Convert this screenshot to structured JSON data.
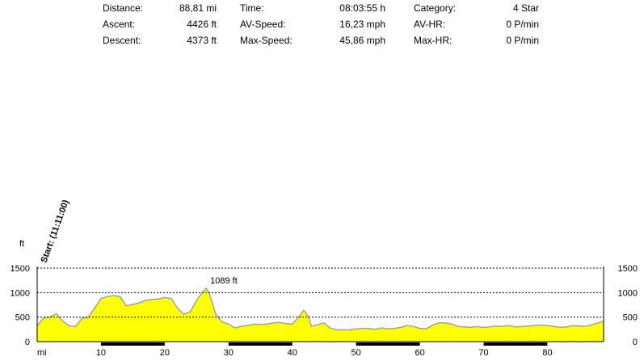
{
  "stats": [
    {
      "label": "Distance:",
      "value": "88,81 mi"
    },
    {
      "label": "Ascent:",
      "value": "4426 ft"
    },
    {
      "label": "Descent:",
      "value": "4373 ft"
    },
    {
      "label": "Time:",
      "value": "08:03:55 h"
    },
    {
      "label": "AV-Speed:",
      "value": "16,23 mph"
    },
    {
      "label": "Max-Speed:",
      "value": "45,86 mph"
    },
    {
      "label": "Category:",
      "value": "4 Star"
    },
    {
      "label": "AV-HR:",
      "value": "0 P/min"
    },
    {
      "label": "Max-HR:",
      "value": "0 P/min"
    }
  ],
  "chart_data": {
    "type": "area",
    "start_label": "Start: (11:11:00)",
    "ylabel": "ft",
    "xlabel": "mi",
    "ylim": [
      0,
      1500
    ],
    "xlim": [
      0,
      88.81
    ],
    "y_ticks": [
      "0",
      "500",
      "1000",
      "1500"
    ],
    "x_ticks": [
      "10",
      "20",
      "30",
      "40",
      "50",
      "60",
      "70",
      "80"
    ],
    "grid": "dashed horizontal",
    "fill_color": "#ffff00",
    "line_color": "#a0a0a0",
    "max_label": "1089 ft",
    "max_label_color": "#b22222",
    "max_point": {
      "x": 26.5,
      "y": 1089
    },
    "x": [
      0,
      1,
      2,
      3,
      4,
      5,
      6,
      7,
      8,
      9,
      10,
      11,
      12,
      13,
      14,
      15,
      16,
      17,
      18,
      19,
      20,
      21,
      22,
      23,
      24,
      25,
      26,
      26.5,
      27,
      28,
      29,
      30,
      31,
      32,
      33,
      34,
      35,
      36,
      37,
      38,
      39,
      40,
      41,
      41.8,
      42.5,
      43,
      44,
      45,
      46,
      47,
      48,
      49,
      50,
      51,
      52,
      53,
      54,
      55,
      56,
      57,
      58,
      59,
      60,
      61,
      62,
      63,
      64,
      65,
      66,
      67,
      68,
      69,
      70,
      71,
      72,
      73,
      74,
      75,
      76,
      77,
      78,
      79,
      80,
      81,
      82,
      83,
      84,
      85,
      86,
      87,
      88,
      88.81
    ],
    "values": [
      330,
      480,
      500,
      570,
      420,
      320,
      310,
      470,
      500,
      680,
      880,
      920,
      940,
      920,
      730,
      760,
      790,
      840,
      860,
      870,
      900,
      880,
      680,
      560,
      610,
      840,
      1020,
      1089,
      980,
      560,
      400,
      360,
      280,
      310,
      330,
      360,
      350,
      360,
      380,
      390,
      370,
      360,
      500,
      640,
      520,
      310,
      350,
      380,
      270,
      240,
      240,
      240,
      260,
      270,
      270,
      250,
      280,
      260,
      270,
      290,
      330,
      310,
      270,
      260,
      340,
      380,
      380,
      360,
      310,
      300,
      290,
      310,
      290,
      300,
      320,
      310,
      330,
      300,
      310,
      320,
      330,
      340,
      330,
      310,
      290,
      300,
      330,
      320,
      310,
      350,
      380,
      420
    ]
  }
}
